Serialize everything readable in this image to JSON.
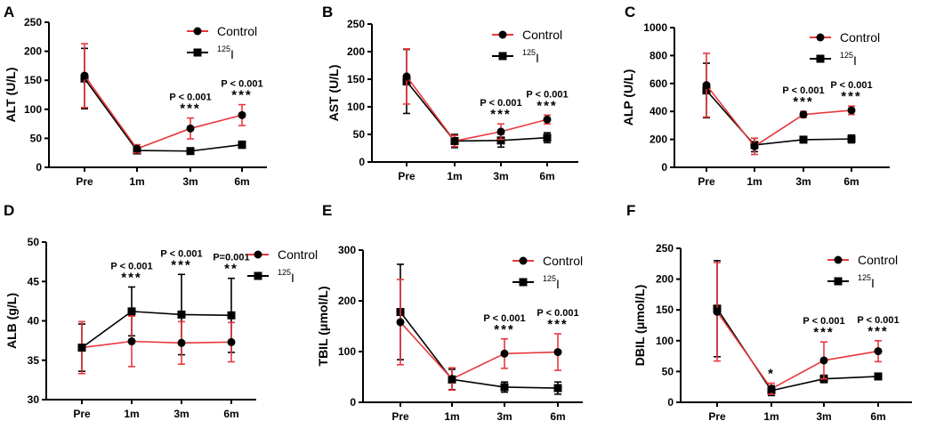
{
  "chart_data": [
    {
      "panel": "A",
      "type": "line",
      "ylabel": "ALT (U/L)",
      "ylim": [
        0,
        250
      ],
      "yticks": [
        0,
        50,
        100,
        150,
        200,
        250
      ],
      "categories": [
        "Pre",
        "1m",
        "3m",
        "6m"
      ],
      "series": [
        {
          "name": "Control",
          "color": "#e8383d",
          "marker": "circle",
          "values": [
            158,
            32,
            67,
            90
          ],
          "err": [
            55,
            7,
            18,
            18
          ]
        },
        {
          "name": "125I",
          "sup": "125",
          "base": "I",
          "color": "#000000",
          "marker": "square",
          "values": [
            153,
            29,
            28,
            39
          ],
          "err": [
            52,
            5,
            4,
            6
          ]
        }
      ],
      "annotations": [
        null,
        null,
        {
          "p": "P < 0.001",
          "stars": "***"
        },
        {
          "p": "P < 0.001",
          "stars": "***"
        }
      ]
    },
    {
      "panel": "B",
      "type": "line",
      "ylabel": "AST (U/L)",
      "ylim": [
        0,
        250
      ],
      "yticks": [
        0,
        50,
        100,
        150,
        200,
        250
      ],
      "categories": [
        "Pre",
        "1m",
        "3m",
        "6m"
      ],
      "series": [
        {
          "name": "Control",
          "color": "#e8383d",
          "marker": "circle",
          "values": [
            155,
            38,
            55,
            77
          ],
          "err": [
            50,
            10,
            14,
            8
          ]
        },
        {
          "name": "125I",
          "sup": "125",
          "base": "I",
          "color": "#000000",
          "marker": "square",
          "values": [
            146,
            38,
            39,
            44
          ],
          "err": [
            58,
            12,
            12,
            9
          ]
        }
      ],
      "annotations": [
        null,
        null,
        {
          "p": "P < 0.001",
          "stars": "***"
        },
        {
          "p": "P < 0.001",
          "stars": "***"
        }
      ]
    },
    {
      "panel": "C",
      "type": "line",
      "ylabel": "ALP (U/L)",
      "ylim": [
        0,
        1000
      ],
      "yticks": [
        0,
        200,
        400,
        600,
        800,
        1000
      ],
      "categories": [
        "Pre",
        "1m",
        "3m",
        "6m"
      ],
      "series": [
        {
          "name": "Control",
          "color": "#e8383d",
          "marker": "circle",
          "values": [
            588,
            150,
            378,
            408
          ],
          "err": [
            228,
            58,
            22,
            30
          ]
        },
        {
          "name": "125I",
          "sup": "125",
          "base": "I",
          "color": "#000000",
          "marker": "square",
          "values": [
            550,
            160,
            198,
            203
          ],
          "err": [
            195,
            48,
            20,
            28
          ]
        }
      ],
      "annotations": [
        null,
        null,
        {
          "p": "P < 0.001",
          "stars": "***"
        },
        {
          "p": "P < 0.001",
          "stars": "***"
        }
      ]
    },
    {
      "panel": "D",
      "type": "line",
      "ylabel": "ALB (g/L)",
      "ylim": [
        30,
        50
      ],
      "yticks": [
        30,
        35,
        40,
        45,
        50
      ],
      "categories": [
        "Pre",
        "1m",
        "3m",
        "6m"
      ],
      "series": [
        {
          "name": "Control",
          "color": "#e8383d",
          "marker": "circle",
          "values": [
            36.6,
            37.4,
            37.2,
            37.3
          ],
          "err": [
            3.3,
            3.2,
            2.7,
            2.5
          ]
        },
        {
          "name": "125I",
          "sup": "125",
          "base": "I",
          "color": "#000000",
          "marker": "square",
          "values": [
            36.6,
            41.2,
            40.8,
            40.7
          ],
          "err": [
            3.0,
            3.1,
            5.1,
            4.7
          ]
        }
      ],
      "annotations": [
        null,
        {
          "p": "P < 0.001",
          "stars": "***"
        },
        {
          "p": "P < 0.001",
          "stars": "***"
        },
        {
          "p": "P=0.001",
          "stars": "**"
        }
      ]
    },
    {
      "panel": "E",
      "type": "line",
      "ylabel": "TBIL (μmol/L)",
      "ylim": [
        0,
        300
      ],
      "yticks": [
        0,
        100,
        200,
        300
      ],
      "categories": [
        "Pre",
        "1m",
        "3m",
        "6m"
      ],
      "series": [
        {
          "name": "Control",
          "color": "#e8383d",
          "marker": "circle",
          "values": [
            158,
            46,
            96,
            99
          ],
          "err": [
            84,
            22,
            29,
            36
          ]
        },
        {
          "name": "125I",
          "sup": "125",
          "base": "I",
          "color": "#000000",
          "marker": "square",
          "values": [
            178,
            45,
            30,
            28
          ],
          "err": [
            94,
            20,
            10,
            12
          ]
        }
      ],
      "annotations": [
        null,
        null,
        {
          "p": "P < 0.001",
          "stars": "***"
        },
        {
          "p": "P < 0.001",
          "stars": "***"
        }
      ]
    },
    {
      "panel": "F",
      "type": "line",
      "ylabel": "DBIL (μmol/L)",
      "ylim": [
        0,
        250
      ],
      "yticks": [
        0,
        50,
        100,
        150,
        200,
        250
      ],
      "categories": [
        "Pre",
        "1m",
        "3m",
        "6m"
      ],
      "series": [
        {
          "name": "Control",
          "color": "#e8383d",
          "marker": "circle",
          "values": [
            147,
            22,
            68,
            83
          ],
          "err": [
            80,
            9,
            30,
            17
          ]
        },
        {
          "name": "125I",
          "sup": "125",
          "base": "I",
          "color": "#000000",
          "marker": "square",
          "values": [
            152,
            19,
            38,
            42
          ],
          "err": [
            78,
            8,
            6,
            5
          ]
        }
      ],
      "annotations": [
        null,
        {
          "p": "",
          "stars": "*"
        },
        {
          "p": "P < 0.001",
          "stars": "***"
        },
        {
          "p": "P < 0.001",
          "stars": "***"
        }
      ]
    }
  ]
}
